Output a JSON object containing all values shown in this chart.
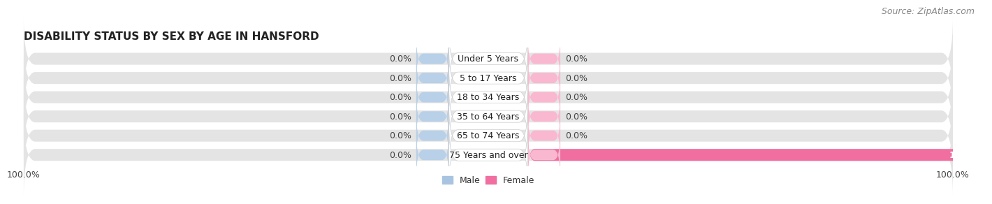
{
  "title": "DISABILITY STATUS BY SEX BY AGE IN HANSFORD",
  "source": "Source: ZipAtlas.com",
  "categories": [
    "Under 5 Years",
    "5 to 17 Years",
    "18 to 34 Years",
    "35 to 64 Years",
    "65 to 74 Years",
    "75 Years and over"
  ],
  "male_values": [
    0.0,
    0.0,
    0.0,
    0.0,
    0.0,
    0.0
  ],
  "female_values": [
    0.0,
    0.0,
    0.0,
    0.0,
    0.0,
    100.0
  ],
  "male_color": "#a8c4e0",
  "female_color": "#f06fa0",
  "male_stub_color": "#b8d0e8",
  "female_stub_color": "#f9b8cf",
  "bar_bg_color": "#e4e4e4",
  "fig_bg_color": "#ffffff",
  "title_fontsize": 11,
  "source_fontsize": 9,
  "label_fontsize": 9,
  "category_fontsize": 9,
  "tick_fontsize": 9,
  "legend_fontsize": 9
}
